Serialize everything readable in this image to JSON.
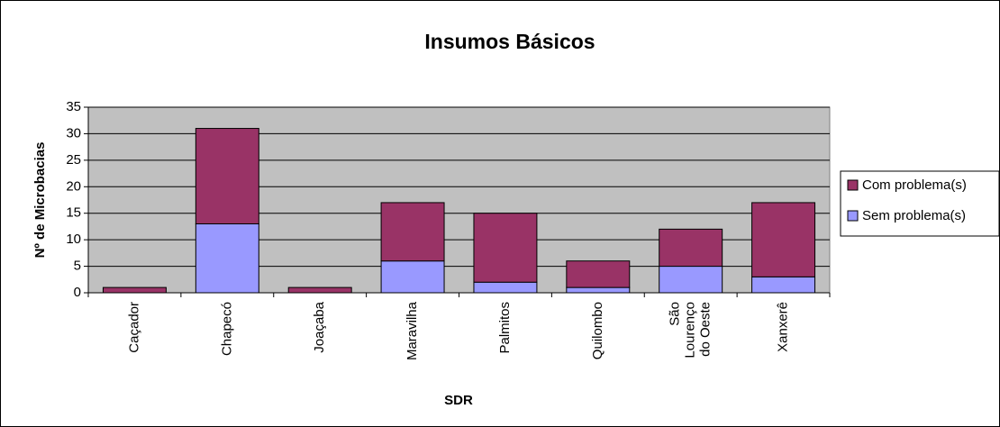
{
  "chart_data": {
    "type": "stacked_bar",
    "title": "Insumos Básicos",
    "x_label": "SDR",
    "y_label": "Nº de Microbacias",
    "categories": [
      "Caçador",
      "Chapecó",
      "Joaçaba",
      "Maravilha",
      "Palmitos",
      "Quilombo",
      "São Lourenço do Oeste",
      "Xanxerê"
    ],
    "series": [
      {
        "name": "Sem problema(s)",
        "color": "#9999ff",
        "values": [
          0,
          13,
          0,
          6,
          2,
          1,
          5,
          3
        ]
      },
      {
        "name": "Com problema(s)",
        "color": "#993366",
        "values": [
          1,
          18,
          1,
          11,
          13,
          5,
          7,
          14
        ]
      }
    ],
    "ylim": [
      0,
      35
    ],
    "yticks": [
      0,
      5,
      10,
      15,
      20,
      25,
      30,
      35
    ],
    "grid": true,
    "legend": "right"
  }
}
